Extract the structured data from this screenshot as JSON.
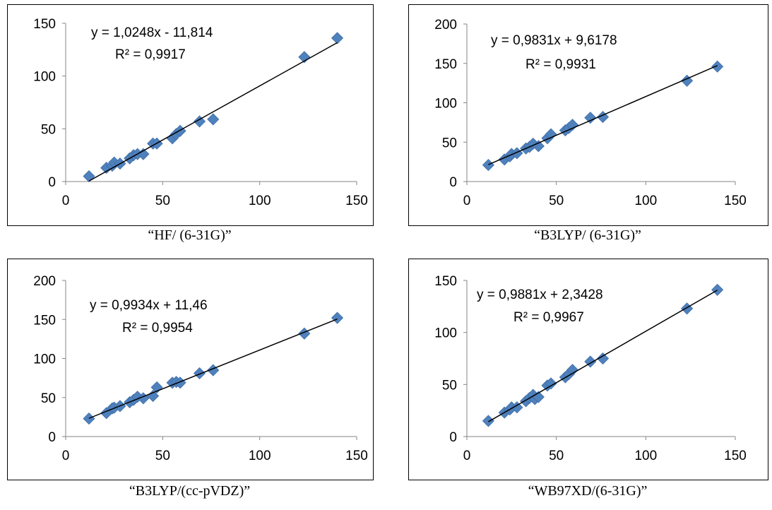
{
  "chart_data": [
    {
      "type": "scatter",
      "caption": "“HF/ (6-31G)”",
      "equation": "y = 1,0248x - 11,814",
      "r2": "R² = 0,9917",
      "xlim": [
        0,
        150
      ],
      "ylim": [
        0,
        150
      ],
      "xticks": [
        0,
        50,
        100,
        150
      ],
      "yticks": [
        0,
        50,
        100,
        150
      ],
      "trendline": {
        "slope": 1.0248,
        "intercept": -11.814,
        "x_range": [
          12,
          140
        ]
      },
      "marker_color": "#4f81bd",
      "points": [
        [
          12,
          5
        ],
        [
          21,
          13
        ],
        [
          24,
          15
        ],
        [
          25,
          18
        ],
        [
          28,
          17
        ],
        [
          33,
          22
        ],
        [
          35,
          25
        ],
        [
          37,
          26
        ],
        [
          40,
          26
        ],
        [
          45,
          36
        ],
        [
          47,
          36
        ],
        [
          55,
          41
        ],
        [
          57,
          45
        ],
        [
          59,
          48
        ],
        [
          69,
          57
        ],
        [
          76,
          59
        ],
        [
          123,
          118
        ],
        [
          140,
          136
        ]
      ]
    },
    {
      "type": "scatter",
      "caption": "“B3LYP/ (6-31G)”",
      "equation": "y = 0,9831x + 9,6178",
      "r2": "R² = 0,9931",
      "xlim": [
        0,
        150
      ],
      "ylim": [
        0,
        200
      ],
      "xticks": [
        0,
        50,
        100,
        150
      ],
      "yticks": [
        0,
        50,
        100,
        150,
        200
      ],
      "trendline": {
        "slope": 0.9831,
        "intercept": 9.6178,
        "x_range": [
          12,
          140
        ]
      },
      "marker_color": "#4f81bd",
      "points": [
        [
          12,
          21
        ],
        [
          21,
          28
        ],
        [
          24,
          32
        ],
        [
          25,
          35
        ],
        [
          28,
          36
        ],
        [
          33,
          42
        ],
        [
          35,
          44
        ],
        [
          37,
          48
        ],
        [
          40,
          45
        ],
        [
          45,
          55
        ],
        [
          47,
          60
        ],
        [
          55,
          65
        ],
        [
          57,
          68
        ],
        [
          59,
          72
        ],
        [
          69,
          81
        ],
        [
          76,
          82
        ],
        [
          123,
          128
        ],
        [
          140,
          146
        ]
      ]
    },
    {
      "type": "scatter",
      "caption": "“B3LYP/(cc-pVDZ)”",
      "equation": "y = 0,9934x + 11,46",
      "r2": "R² = 0,9954",
      "xlim": [
        0,
        150
      ],
      "ylim": [
        0,
        200
      ],
      "xticks": [
        0,
        50,
        100,
        150
      ],
      "yticks": [
        0,
        50,
        100,
        150,
        200
      ],
      "trendline": {
        "slope": 0.9934,
        "intercept": 11.46,
        "x_range": [
          12,
          140
        ]
      },
      "marker_color": "#4f81bd",
      "points": [
        [
          12,
          23
        ],
        [
          21,
          30
        ],
        [
          24,
          36
        ],
        [
          25,
          37
        ],
        [
          28,
          39
        ],
        [
          33,
          44
        ],
        [
          35,
          47
        ],
        [
          37,
          51
        ],
        [
          40,
          49
        ],
        [
          45,
          52
        ],
        [
          47,
          63
        ],
        [
          55,
          69
        ],
        [
          57,
          70
        ],
        [
          59,
          69
        ],
        [
          69,
          81
        ],
        [
          76,
          85
        ],
        [
          123,
          132
        ],
        [
          140,
          152
        ]
      ]
    },
    {
      "type": "scatter",
      "caption": "“WB97XD/(6-31G)”",
      "equation": "y = 0,9881x + 2,3428",
      "r2": "R² = 0,9967",
      "xlim": [
        0,
        150
      ],
      "ylim": [
        0,
        150
      ],
      "xticks": [
        0,
        50,
        100,
        150
      ],
      "yticks": [
        0,
        50,
        100,
        150
      ],
      "trendline": {
        "slope": 0.9881,
        "intercept": 2.3428,
        "x_range": [
          12,
          140
        ]
      },
      "marker_color": "#4f81bd",
      "points": [
        [
          12,
          15
        ],
        [
          21,
          23
        ],
        [
          24,
          26
        ],
        [
          25,
          28
        ],
        [
          28,
          28
        ],
        [
          33,
          34
        ],
        [
          35,
          37
        ],
        [
          37,
          40
        ],
        [
          38,
          36
        ],
        [
          40,
          38
        ],
        [
          45,
          49
        ],
        [
          47,
          51
        ],
        [
          55,
          57
        ],
        [
          57,
          60
        ],
        [
          59,
          64
        ],
        [
          69,
          72
        ],
        [
          76,
          75
        ],
        [
          123,
          123
        ],
        [
          140,
          141
        ]
      ]
    }
  ]
}
